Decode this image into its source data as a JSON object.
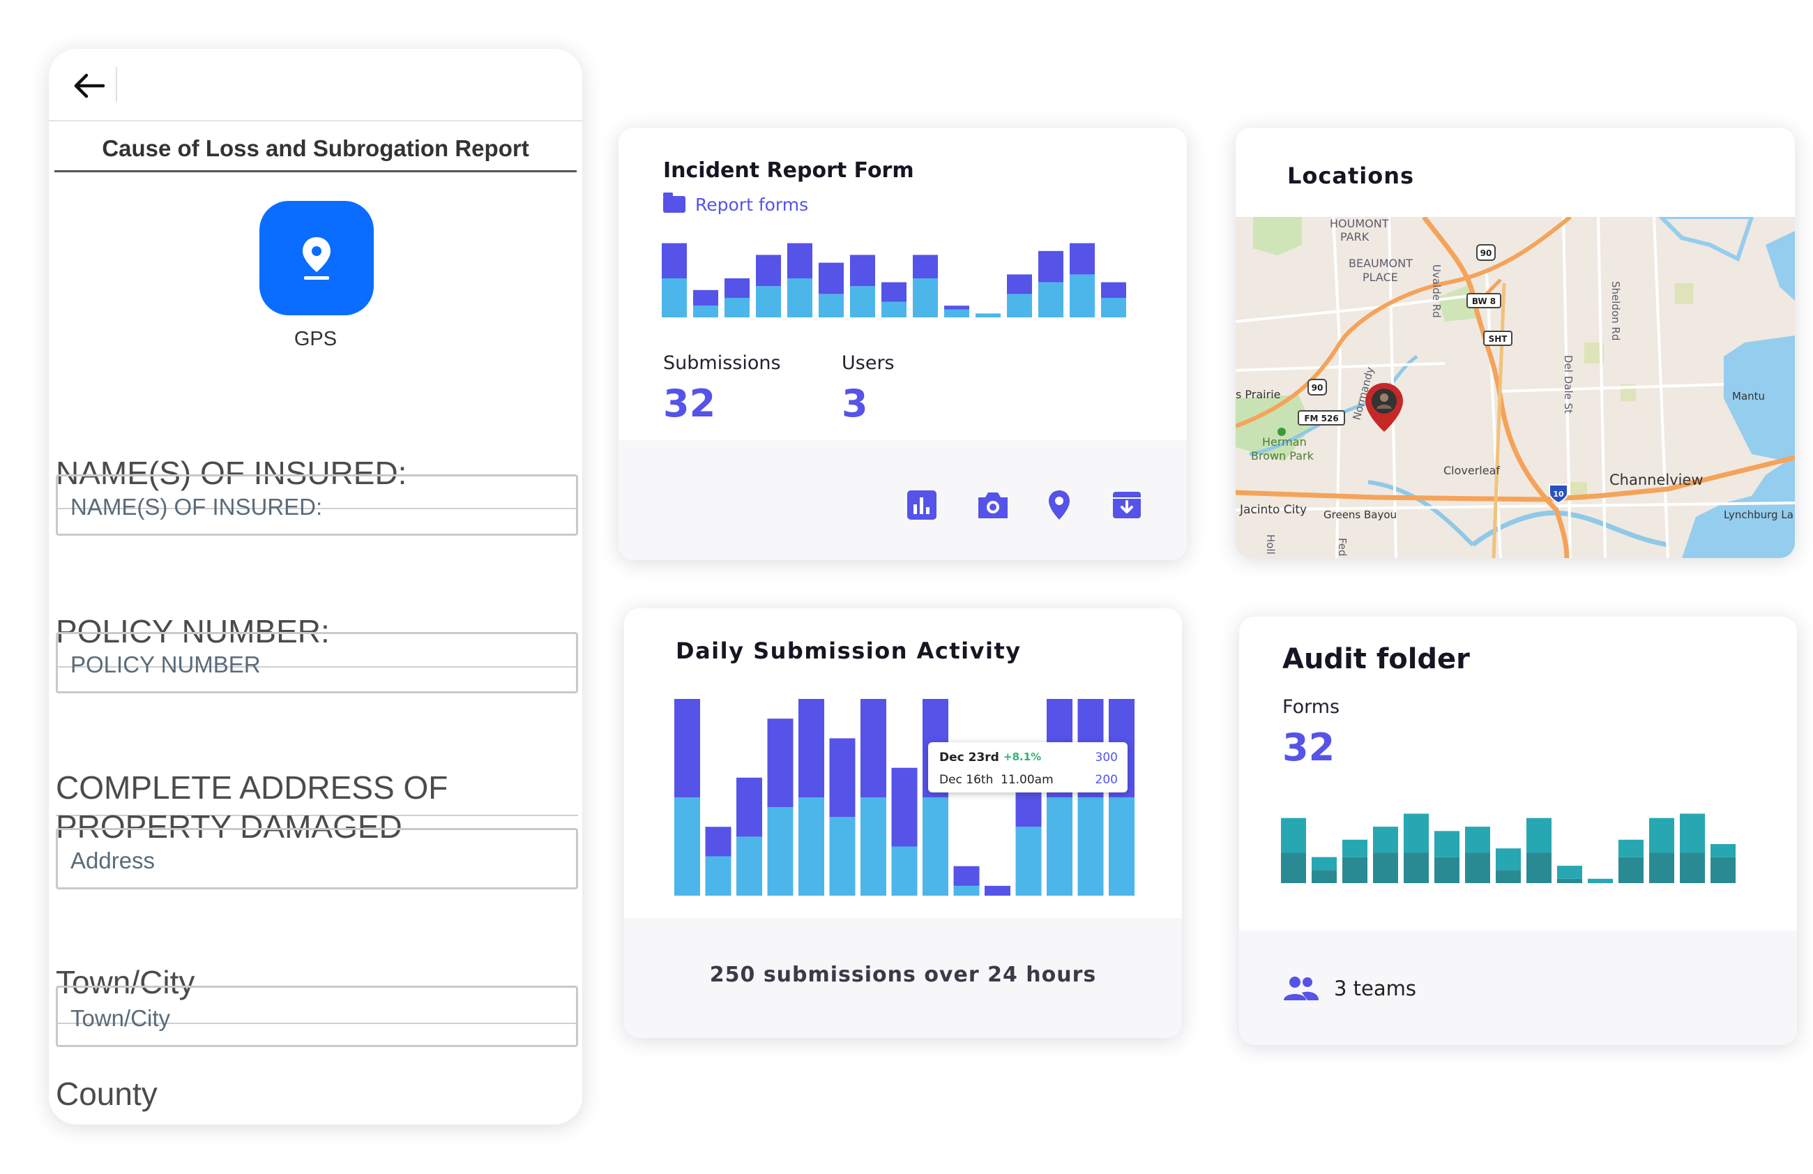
{
  "phone": {
    "title": "Cause of Loss and Subrogation Report",
    "gps_label": "GPS",
    "fields": [
      {
        "question": "NAME(S) OF INSURED:",
        "placeholder": "NAME(S) OF INSURED:"
      },
      {
        "question": "POLICY NUMBER:",
        "placeholder": "POLICY NUMBER"
      },
      {
        "question_line1": "COMPLETE ADDRESS OF",
        "question_line2": "PROPERTY DAMAGED",
        "placeholder": "Address"
      },
      {
        "question": "Town/City",
        "placeholder": "Town/City"
      },
      {
        "question": "County"
      }
    ]
  },
  "incident": {
    "title": "Incident Report Form",
    "folder_link": "Report forms",
    "submissions_label": "Submissions",
    "submissions_value": "32",
    "users_label": "Users",
    "users_value": "3",
    "footer_icons": [
      "bar-chart-icon",
      "camera-icon",
      "location-pin-icon",
      "archive-download-icon"
    ]
  },
  "locations": {
    "title": "Locations",
    "map_labels": {
      "houmont": "HOUMONT",
      "park": "PARK",
      "beaumont": "BEAUMONT",
      "place": "PLACE",
      "uvalde": "Uvalde Rd",
      "sheldon": "Sheldon Rd",
      "deldale": "Del Dale St",
      "prairie": "s Prairie",
      "fm526": "FM 526",
      "herman1": "Herman",
      "herman2": "Brown Park",
      "normandy": "Normandy",
      "cloverleaf": "Cloverleaf",
      "channelview": "Channelview",
      "mantu": "Mantu",
      "jacinto": "Jacinto City",
      "greens": "Greens Bayou",
      "lynchburg": "Lynchburg La",
      "holl": "Holl",
      "fed": "Fed",
      "hw90a": "90",
      "hw90b": "90",
      "bw8": "BW 8",
      "sht": "SHT",
      "i10": "10"
    }
  },
  "daily": {
    "title": "Daily Submission Activity",
    "tooltip": {
      "row1_date": "Dec 23rd",
      "row1_change": "+8.1%",
      "row1_value": "300",
      "row2_date": "Dec 16th",
      "row2_time": "11.00am",
      "row2_value": "200"
    },
    "footer_text": "250 submissions over 24 hours"
  },
  "audit": {
    "title": "Audit folder",
    "forms_label": "Forms",
    "forms_value": "32",
    "teams_text": "3 teams"
  },
  "colors": {
    "purple": "#5553e8",
    "lightblue": "#4cb6ea",
    "teal_light": "#27a7b2",
    "teal_dark": "#2a8a93",
    "gps_blue": "#0a6dff"
  },
  "chart_data": [
    {
      "type": "bar",
      "title": "",
      "stacked": true,
      "series": [
        {
          "values": [
            10,
            3,
            5,
            8,
            10,
            6,
            8,
            4,
            10,
            2,
            1,
            6,
            9,
            11,
            5
          ]
        },
        {
          "values": [
            9,
            4,
            5,
            8,
            9,
            8,
            8,
            5,
            6,
            1,
            0,
            5,
            8,
            8,
            4
          ]
        }
      ]
    },
    {
      "type": "bar",
      "title": "Daily Submission Activity",
      "stacked": true,
      "series": [
        {
          "values": [
            10,
            4,
            6,
            9,
            10,
            8,
            10,
            5,
            10,
            1,
            0,
            7,
            10,
            10,
            10
          ]
        },
        {
          "values": [
            10,
            3,
            6,
            9,
            10,
            8,
            10,
            8,
            10,
            2,
            1,
            6,
            10,
            10,
            10
          ]
        }
      ]
    },
    {
      "type": "bar",
      "title": "Audit folder",
      "stacked": true,
      "series": [
        {
          "values": [
            7,
            3,
            6,
            7,
            7,
            6,
            7,
            3,
            7,
            1,
            0,
            6,
            7,
            7,
            6
          ]
        },
        {
          "values": [
            8,
            3,
            4,
            6,
            9,
            6,
            6,
            5,
            8,
            3,
            1,
            4,
            8,
            9,
            3
          ]
        }
      ]
    }
  ]
}
